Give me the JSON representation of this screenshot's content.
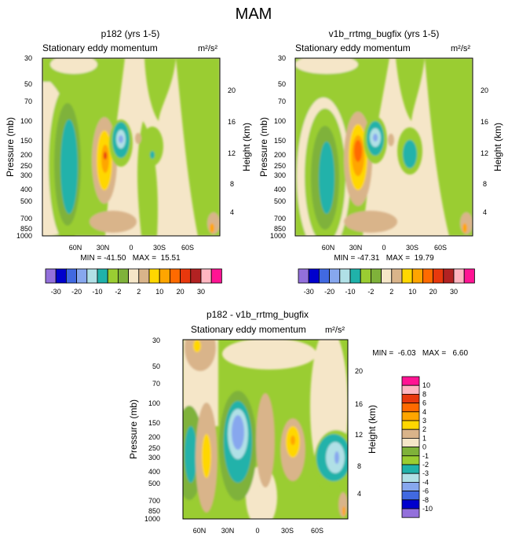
{
  "figure_title": "MAM",
  "chart_data": [
    {
      "type": "heatmap",
      "title": "p182 (yrs 1-5)",
      "subtitle_left": "Stationary eddy momentum",
      "units": "m²/s²",
      "ylabel": "Pressure (mb)",
      "ylabel_right": "Height (km)",
      "pressure_ticks": [
        "30",
        "50",
        "70",
        "100",
        "150",
        "200",
        "250",
        "300",
        "400",
        "500",
        "700",
        "850",
        "1000"
      ],
      "height_ticks": [
        "20",
        "16",
        "12",
        "8",
        "4"
      ],
      "lat_ticks": [
        "60N",
        "30N",
        "0",
        "30S",
        "60S"
      ],
      "stats": "MIN = -41.50   MAX =  15.51",
      "min": -41.5,
      "max": 15.51
    },
    {
      "type": "heatmap",
      "title": "v1b_rrtmg_bugfix (yrs 1-5)",
      "subtitle_left": "Stationary eddy momentum",
      "units": "m²/s²",
      "ylabel": "Pressure (mb)",
      "ylabel_right": "Height (km)",
      "pressure_ticks": [
        "30",
        "50",
        "70",
        "100",
        "150",
        "200",
        "250",
        "300",
        "400",
        "500",
        "700",
        "850",
        "1000"
      ],
      "height_ticks": [
        "20",
        "16",
        "12",
        "8",
        "4"
      ],
      "lat_ticks": [
        "60N",
        "30N",
        "0",
        "30S",
        "60S"
      ],
      "stats": "MIN = -47.31   MAX =  19.79",
      "min": -47.31,
      "max": 19.79
    },
    {
      "type": "heatmap",
      "title": "p182 - v1b_rrtmg_bugfix",
      "subtitle_left": "Stationary eddy momentum",
      "units": "m²/s²",
      "ylabel": "Pressure (mb)",
      "ylabel_right": "Height (km)",
      "pressure_ticks": [
        "30",
        "50",
        "70",
        "100",
        "150",
        "200",
        "250",
        "300",
        "400",
        "500",
        "700",
        "850",
        "1000"
      ],
      "height_ticks": [
        "20",
        "16",
        "12",
        "8",
        "4"
      ],
      "lat_ticks": [
        "60N",
        "30N",
        "0",
        "30S",
        "60S"
      ],
      "stats": "MIN =  -6.03   MAX =   6.60",
      "min": -6.03,
      "max": 6.6
    }
  ],
  "top_colorbar": {
    "labels": [
      "-30",
      "-20",
      "-10",
      "-2",
      "2",
      "10",
      "20",
      "30"
    ],
    "colors": [
      "#9370db",
      "#0000cd",
      "#4169e1",
      "#87a7ee",
      "#b0e0e6",
      "#20b2aa",
      "#9acd32",
      "#7fb23a",
      "#f5e6c8",
      "#d9b48a",
      "#ffd700",
      "#ffa500",
      "#ff6a00",
      "#e8380d",
      "#b22222",
      "#ffb6c1",
      "#ff1493"
    ]
  },
  "diff_colorbar": {
    "labels": [
      "10",
      "8",
      "6",
      "4",
      "3",
      "2",
      "1",
      "0",
      "-1",
      "-2",
      "-3",
      "-4",
      "-6",
      "-8",
      "-10"
    ],
    "colors": [
      "#ff1493",
      "#ffb6c1",
      "#e8380d",
      "#ff6a00",
      "#ffa500",
      "#ffd700",
      "#d9b48a",
      "#f5e6c8",
      "#7fb23a",
      "#9acd32",
      "#20b2aa",
      "#b0e0e6",
      "#87a7ee",
      "#4169e1",
      "#0000cd",
      "#9370db"
    ]
  }
}
